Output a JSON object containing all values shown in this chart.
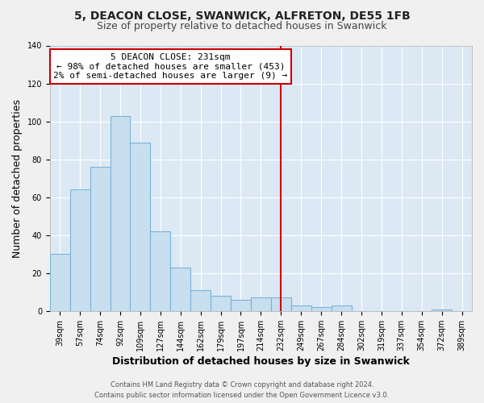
{
  "title": "5, DEACON CLOSE, SWANWICK, ALFRETON, DE55 1FB",
  "subtitle": "Size of property relative to detached houses in Swanwick",
  "xlabel": "Distribution of detached houses by size in Swanwick",
  "ylabel": "Number of detached properties",
  "bar_labels": [
    "39sqm",
    "57sqm",
    "74sqm",
    "92sqm",
    "109sqm",
    "127sqm",
    "144sqm",
    "162sqm",
    "179sqm",
    "197sqm",
    "214sqm",
    "232sqm",
    "249sqm",
    "267sqm",
    "284sqm",
    "302sqm",
    "319sqm",
    "337sqm",
    "354sqm",
    "372sqm",
    "389sqm"
  ],
  "bar_values": [
    30,
    64,
    76,
    103,
    89,
    42,
    23,
    11,
    8,
    6,
    7,
    7,
    3,
    2,
    3,
    0,
    0,
    0,
    0,
    1,
    0
  ],
  "bar_color": "#c8dff0",
  "bar_edge_color": "#7ab4d4",
  "vline_x_label": "232sqm",
  "vline_color": "#cc0000",
  "annotation_title": "5 DEACON CLOSE: 231sqm",
  "annotation_line1": "← 98% of detached houses are smaller (453)",
  "annotation_line2": "2% of semi-detached houses are larger (9) →",
  "annotation_box_facecolor": "#ffffff",
  "annotation_box_edgecolor": "#cc0000",
  "ylim": [
    0,
    140
  ],
  "yticks": [
    0,
    20,
    40,
    60,
    80,
    100,
    120,
    140
  ],
  "footer_line1": "Contains HM Land Registry data © Crown copyright and database right 2024.",
  "footer_line2": "Contains public sector information licensed under the Open Government Licence v3.0.",
  "plot_bg_color": "#dce9f5",
  "fig_bg_color": "#f0f0f0",
  "grid_color": "#ffffff",
  "title_fontsize": 10,
  "subtitle_fontsize": 9,
  "axis_label_fontsize": 9,
  "tick_fontsize": 7,
  "footer_fontsize": 6,
  "annotation_fontsize": 8
}
